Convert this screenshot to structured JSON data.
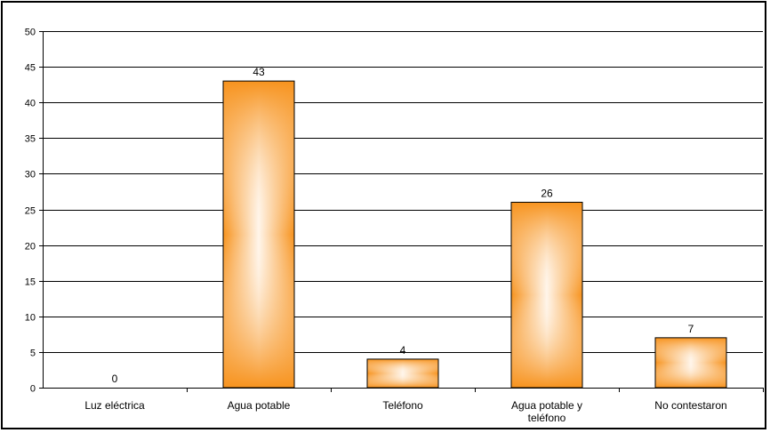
{
  "chart_data": {
    "type": "bar",
    "title": "",
    "xlabel": "",
    "ylabel": "",
    "ylim": [
      0,
      50
    ],
    "yticks": [
      0,
      5,
      10,
      15,
      20,
      25,
      30,
      35,
      40,
      45,
      50
    ],
    "grid": true,
    "legend": "none",
    "categories": [
      [
        "Luz eléctrica"
      ],
      [
        "Agua potable"
      ],
      [
        "Teléfono"
      ],
      [
        "Agua potable y",
        "teléfono"
      ],
      [
        "No contestaron"
      ]
    ],
    "values": [
      0,
      43,
      4,
      26,
      7
    ],
    "data_labels": [
      "0",
      "43",
      "4",
      "26",
      "7"
    ],
    "colors": {
      "bar_edge": "#f7931e",
      "bar_center": "#ffffff",
      "bar_stroke": "#000000",
      "grid": "#000000"
    }
  }
}
